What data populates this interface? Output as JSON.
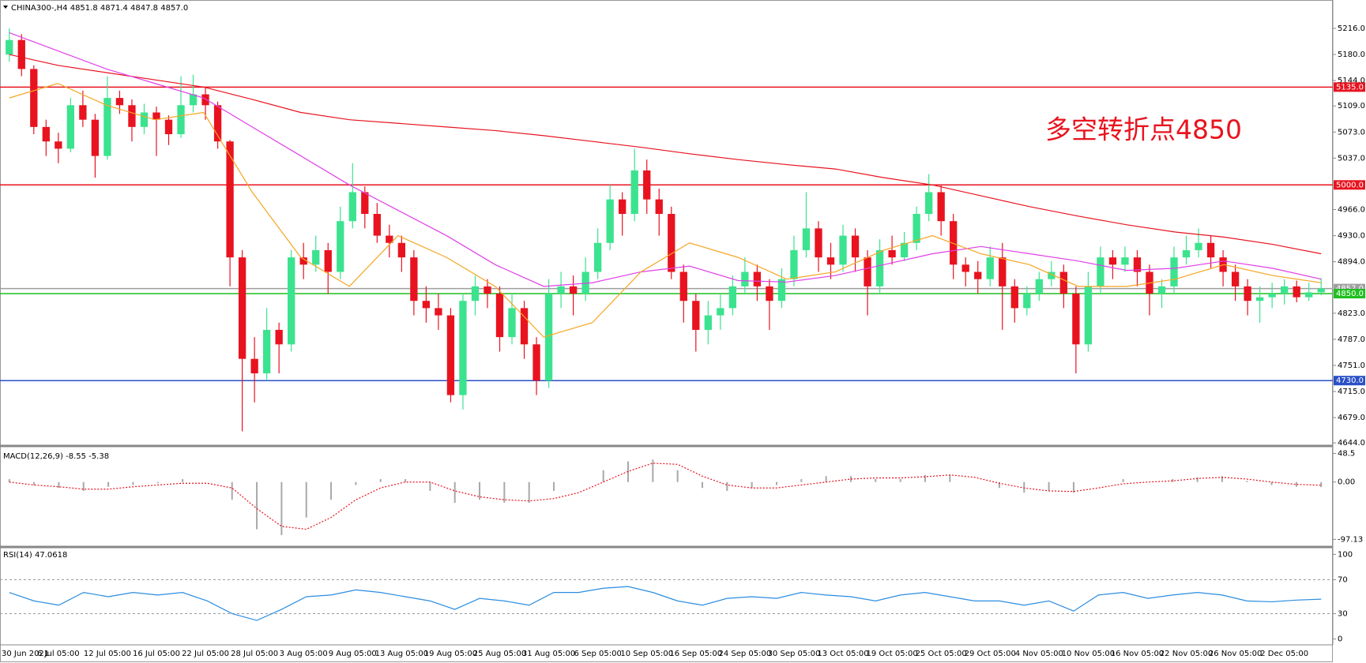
{
  "header": "CHINA300-,H4  4851.8 4871.4 4847.8 4857.0",
  "annotation": "多空转折点4850",
  "chart_data": [
    {
      "type": "candlestick",
      "x_labels": [
        "30 Jun 2021",
        "6 Jul 05:00",
        "12 Jul 05:00",
        "16 Jul 05:00",
        "22 Jul 05:00",
        "28 Jul 05:00",
        "3 Aug 05:00",
        "9 Aug 05:00",
        "13 Aug 05:00",
        "19 Aug 05:00",
        "25 Aug 05:00",
        "31 Aug 05:00",
        "6 Sep 05:00",
        "10 Sep 05:00",
        "16 Sep 05:00",
        "24 Sep 05:00",
        "30 Sep 05:00",
        "13 Oct 05:00",
        "19 Oct 05:00",
        "25 Oct 05:00",
        "29 Oct 05:00",
        "4 Nov 05:00",
        "10 Nov 05:00",
        "16 Nov 05:00",
        "22 Nov 05:00",
        "26 Nov 05:00",
        "2 Dec 05:00"
      ],
      "open": [
        5180,
        5200,
        5160,
        5080,
        5060,
        5050,
        5110,
        5090,
        5040,
        5120,
        5110,
        5080,
        5100,
        5090,
        5070,
        5110,
        5125,
        5110,
        5060,
        4900,
        4760,
        4740,
        4800,
        4780,
        4900,
        4890,
        4910,
        4880,
        4950,
        4990,
        4960,
        4930,
        4920,
        4900,
        4840,
        4830,
        4820,
        4710,
        4840,
        4860,
        4850,
        4790,
        4830,
        4780,
        4730,
        4850,
        4860,
        4850,
        4880,
        4920,
        4980,
        4960,
        5020,
        4980,
        4960,
        4880,
        4840,
        4800,
        4820,
        4830,
        4860,
        4880,
        4860,
        4840,
        4870,
        4910,
        4940,
        4900,
        4890,
        4930,
        4900,
        4860,
        4910,
        4900,
        4920,
        4960,
        4990,
        4950,
        4890,
        4880,
        4870,
        4900,
        4860,
        4830,
        4850,
        4870,
        4880,
        4850,
        4780,
        4860,
        4900,
        4890,
        4900,
        4880,
        4850,
        4860,
        4900,
        4910,
        4920,
        4900,
        4880,
        4860,
        4840,
        4845,
        4850,
        4860,
        4845,
        4851.8
      ],
      "high": [
        5216,
        5208,
        5165,
        5090,
        5072,
        5120,
        5130,
        5098,
        5150,
        5130,
        5118,
        5112,
        5108,
        5096,
        5150,
        5152,
        5135,
        5115,
        5062,
        4910,
        4790,
        4830,
        4810,
        4910,
        4920,
        4930,
        4920,
        4970,
        5030,
        4998,
        4975,
        4945,
        4930,
        4910,
        4860,
        4850,
        4830,
        4850,
        4875,
        4870,
        4860,
        4850,
        4840,
        4790,
        4870,
        4880,
        4875,
        4900,
        4940,
        5000,
        4990,
        5050,
        5035,
        4995,
        4970,
        4890,
        4850,
        4840,
        4850,
        4875,
        4900,
        4890,
        4870,
        4885,
        4930,
        4990,
        4950,
        4920,
        4945,
        4940,
        4910,
        4925,
        4930,
        4935,
        4970,
        5015,
        5000,
        4960,
        4900,
        4895,
        4915,
        4920,
        4870,
        4860,
        4880,
        4895,
        4890,
        4860,
        4880,
        4915,
        4910,
        4915,
        4910,
        4890,
        4870,
        4915,
        4930,
        4940,
        4930,
        4910,
        4890,
        4870,
        4860,
        4865,
        4870,
        4868,
        4865,
        4871.4
      ],
      "low": [
        5170,
        5150,
        5070,
        5040,
        5030,
        5045,
        5080,
        5010,
        5035,
        5098,
        5060,
        5070,
        5040,
        5055,
        5065,
        5100,
        5090,
        5050,
        4860,
        4660,
        4700,
        4730,
        4740,
        4770,
        4870,
        4880,
        4850,
        4870,
        4940,
        4940,
        4920,
        4900,
        4880,
        4820,
        4810,
        4800,
        4700,
        4690,
        4820,
        4830,
        4770,
        4780,
        4760,
        4710,
        4720,
        4830,
        4820,
        4840,
        4870,
        4910,
        4930,
        4950,
        4960,
        4930,
        4870,
        4810,
        4770,
        4780,
        4800,
        4820,
        4850,
        4840,
        4800,
        4830,
        4860,
        4900,
        4880,
        4870,
        4880,
        4880,
        4820,
        4850,
        4890,
        4895,
        4910,
        4950,
        4930,
        4870,
        4860,
        4850,
        4860,
        4800,
        4810,
        4820,
        4840,
        4860,
        4830,
        4740,
        4770,
        4850,
        4870,
        4880,
        4860,
        4820,
        4830,
        4850,
        4890,
        4900,
        4885,
        4860,
        4840,
        4820,
        4810,
        4830,
        4835,
        4838,
        4840,
        4847.8
      ],
      "close": [
        5200,
        5160,
        5080,
        5060,
        5050,
        5110,
        5090,
        5040,
        5120,
        5110,
        5080,
        5100,
        5090,
        5070,
        5110,
        5125,
        5110,
        5060,
        4900,
        4760,
        4740,
        4800,
        4780,
        4900,
        4890,
        4910,
        4880,
        4950,
        4990,
        4960,
        4930,
        4920,
        4900,
        4840,
        4830,
        4820,
        4710,
        4840,
        4860,
        4850,
        4790,
        4830,
        4780,
        4730,
        4850,
        4860,
        4850,
        4880,
        4920,
        4980,
        4960,
        5020,
        4980,
        4960,
        4880,
        4840,
        4800,
        4820,
        4830,
        4860,
        4880,
        4860,
        4840,
        4870,
        4910,
        4940,
        4900,
        4890,
        4930,
        4900,
        4860,
        4910,
        4900,
        4920,
        4960,
        4990,
        4950,
        4890,
        4880,
        4870,
        4900,
        4860,
        4830,
        4850,
        4870,
        4880,
        4850,
        4780,
        4860,
        4900,
        4890,
        4900,
        4880,
        4850,
        4860,
        4900,
        4910,
        4920,
        4900,
        4880,
        4860,
        4840,
        4845,
        4850,
        4860,
        4845,
        4851.8,
        4857
      ],
      "up_color": "#3be38f",
      "down_color": "#e8131f",
      "ma_lines": [
        {
          "color": "#e8131f",
          "values": [
            5180,
            5165,
            5155,
            5145,
            5135,
            5118,
            5100,
            5090,
            5085,
            5080,
            5075,
            5068,
            5060,
            5052,
            5043,
            5035,
            5028,
            5022,
            5010,
            5000,
            4985,
            4970,
            4957,
            4945,
            4935,
            4928,
            4918,
            4905
          ]
        },
        {
          "color": "#e040e8",
          "values": [
            5210,
            5185,
            5160,
            5140,
            5120,
            5080,
            5040,
            5000,
            4965,
            4930,
            4890,
            4860,
            4865,
            4880,
            4888,
            4868,
            4866,
            4875,
            4890,
            4905,
            4915,
            4905,
            4895,
            4882,
            4885,
            4895,
            4885,
            4870
          ]
        },
        {
          "color": "#f5a623",
          "values": [
            5120,
            5140,
            5110,
            5090,
            5100,
            4990,
            4900,
            4860,
            4930,
            4900,
            4860,
            4790,
            4810,
            4880,
            4920,
            4900,
            4870,
            4880,
            4910,
            4930,
            4905,
            4890,
            4860,
            4860,
            4870,
            4890,
            4875,
            4865
          ]
        }
      ],
      "ylim": [
        4642,
        5253
      ],
      "yticks": [
        {
          "value": 5216,
          "label": "5216.0"
        },
        {
          "value": 5180,
          "label": "5180.0"
        },
        {
          "value": 5144,
          "label": "5144.0"
        },
        {
          "value": 5109,
          "label": "5109.0"
        },
        {
          "value": 5073,
          "label": "5073.0"
        },
        {
          "value": 5037,
          "label": "5037.0"
        },
        {
          "value": 4966,
          "label": "4966.0"
        },
        {
          "value": 4930,
          "label": "4930.0"
        },
        {
          "value": 4894,
          "label": "4894.0"
        },
        {
          "value": 4823,
          "label": "4823.0"
        },
        {
          "value": 4787,
          "label": "4787.0"
        },
        {
          "value": 4751,
          "label": "4751.0"
        },
        {
          "value": 4715,
          "label": "4715.0"
        },
        {
          "value": 4679,
          "label": "4679.0"
        },
        {
          "value": 4644,
          "label": "4644.0"
        }
      ],
      "levels": [
        {
          "value": 5135,
          "label": "5135.0",
          "color": "#e8131f"
        },
        {
          "value": 5000,
          "label": "5000.0",
          "color": "#e8131f"
        },
        {
          "value": 4857,
          "label": "4857.0",
          "color": "#9e9e9e"
        },
        {
          "value": 4850,
          "label": "4850.0",
          "color": "#1fbf1f"
        },
        {
          "value": 4730,
          "label": "4730.0",
          "color": "#2b4fc7"
        }
      ]
    },
    {
      "type": "macd",
      "title": "MACD(12,26,9) -8.55 -5.38",
      "histogram": [
        5,
        -5,
        -10,
        -15,
        -8,
        -5,
        -2,
        5,
        0,
        -30,
        -80,
        -90,
        -60,
        -30,
        -5,
        5,
        5,
        -15,
        -35,
        -30,
        -35,
        -35,
        -15,
        0,
        20,
        35,
        38,
        20,
        -10,
        -15,
        -10,
        -5,
        5,
        10,
        10,
        5,
        5,
        12,
        12,
        0,
        -10,
        -18,
        -15,
        -18,
        0,
        5,
        0,
        5,
        8,
        10,
        2,
        -5,
        -8,
        -8.55
      ],
      "signal": [
        0,
        -5,
        -8,
        -12,
        -12,
        -8,
        -5,
        -2,
        -2,
        -10,
        -45,
        -75,
        -80,
        -60,
        -30,
        -10,
        0,
        0,
        -15,
        -25,
        -30,
        -32,
        -28,
        -18,
        0,
        18,
        32,
        30,
        10,
        -5,
        -10,
        -10,
        -5,
        0,
        5,
        7,
        7,
        9,
        12,
        8,
        -2,
        -10,
        -15,
        -16,
        -10,
        -3,
        0,
        2,
        6,
        8,
        5,
        0,
        -4,
        -5.38
      ],
      "hist_color": "#a8a8a8",
      "signal_color": "#e8131f",
      "ylim": [
        -107.3,
        55.8
      ],
      "yticks": [
        48.5,
        {
          "value": 0,
          "label": "0.00"
        },
        -97.13
      ]
    },
    {
      "type": "rsi",
      "title": "RSI(14) 47.0618",
      "values": [
        55,
        45,
        40,
        55,
        50,
        55,
        52,
        55,
        45,
        30,
        22,
        35,
        50,
        52,
        58,
        55,
        50,
        45,
        35,
        48,
        45,
        40,
        55,
        55,
        60,
        62,
        55,
        45,
        40,
        48,
        50,
        48,
        55,
        52,
        50,
        45,
        52,
        55,
        50,
        45,
        45,
        40,
        45,
        33,
        52,
        55,
        48,
        52,
        55,
        52,
        45,
        44,
        46,
        47.0618
      ],
      "color": "#2a8de0",
      "ylim": [
        -5,
        105
      ],
      "yticks": [
        100,
        70,
        30,
        0
      ],
      "levels": [
        70,
        30
      ]
    }
  ]
}
